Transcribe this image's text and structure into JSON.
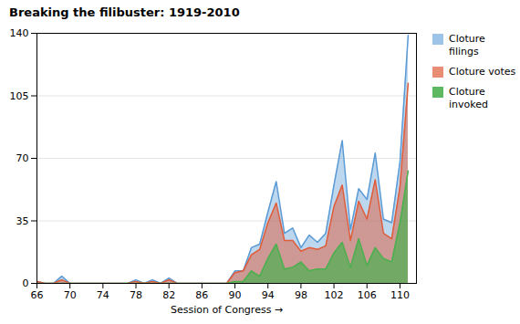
{
  "chart_data": {
    "type": "area",
    "title": "Breaking the filibuster: 1919-2010",
    "xlabel": "Session of Congress",
    "x": [
      66,
      67,
      68,
      69,
      70,
      71,
      72,
      73,
      74,
      75,
      76,
      77,
      78,
      79,
      80,
      81,
      82,
      83,
      84,
      85,
      86,
      87,
      88,
      89,
      90,
      91,
      92,
      93,
      94,
      95,
      96,
      97,
      98,
      99,
      100,
      101,
      102,
      103,
      104,
      105,
      106,
      107,
      108,
      109,
      110,
      111
    ],
    "series": [
      {
        "name": "Cloture\nfilings",
        "color": "#5b9bd5",
        "values": [
          1,
          0,
          0,
          4,
          0,
          0,
          0,
          0,
          0,
          0,
          0,
          0,
          2,
          0,
          2,
          0,
          3,
          0,
          0,
          0,
          0,
          0,
          0,
          0,
          7,
          7,
          20,
          22,
          40,
          57,
          28,
          31,
          20,
          27,
          23,
          28,
          55,
          80,
          30,
          53,
          47,
          73,
          36,
          34,
          68,
          139
        ]
      },
      {
        "name": "Cloture votes",
        "color": "#e05c3a",
        "values": [
          1,
          0,
          0,
          2,
          0,
          0,
          0,
          0,
          0,
          0,
          0,
          0,
          1,
          0,
          1,
          0,
          2,
          0,
          0,
          0,
          0,
          0,
          0,
          0,
          6,
          7,
          16,
          19,
          34,
          45,
          24,
          24,
          18,
          20,
          19,
          21,
          43,
          55,
          24,
          46,
          36,
          58,
          28,
          25,
          54,
          112
        ]
      },
      {
        "name": "Cloture\ninvoked",
        "color": "#4caf50",
        "values": [
          0,
          0,
          0,
          0,
          0,
          0,
          0,
          0,
          0,
          0,
          0,
          0,
          0,
          0,
          0,
          0,
          0,
          0,
          0,
          0,
          0,
          0,
          0,
          0,
          1,
          1,
          7,
          4,
          14,
          22,
          8,
          9,
          12,
          7,
          8,
          8,
          17,
          23,
          9,
          25,
          10,
          20,
          14,
          12,
          34,
          63
        ]
      }
    ],
    "xlim": [
      66,
      112
    ],
    "xticks": [
      66,
      70,
      74,
      78,
      82,
      86,
      90,
      94,
      98,
      102,
      106,
      110
    ],
    "ylim": [
      0,
      140
    ],
    "yticks": [
      0,
      35,
      70,
      105,
      140
    ],
    "grid": true,
    "legend": "right"
  }
}
